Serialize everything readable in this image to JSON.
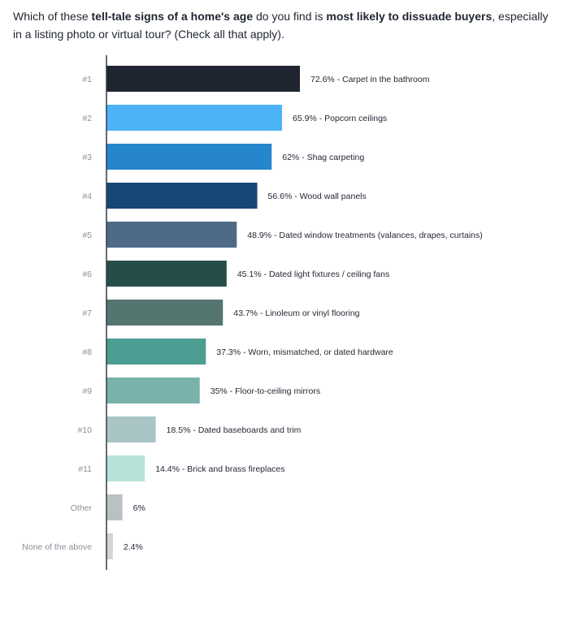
{
  "question": {
    "p1": "Which of these ",
    "b1": "tell-tale signs of a home's age",
    "p2": " do you find is ",
    "b2": "most likely to dissuade buyers",
    "p3": ", especially in a listing photo or virtual tour? (Check all that apply)."
  },
  "chart_data": {
    "type": "bar",
    "orientation": "horizontal",
    "categories": [
      "#1",
      "#2",
      "#3",
      "#4",
      "#5",
      "#6",
      "#7",
      "#8",
      "#9",
      "#10",
      "#11",
      "Other",
      "None of the above"
    ],
    "values": [
      72.6,
      65.9,
      62,
      56.6,
      48.9,
      45.1,
      43.7,
      37.3,
      35,
      18.5,
      14.4,
      6,
      2.4
    ],
    "data_labels": [
      "72.6%  - Carpet in the bathroom",
      "65.9% - Popcorn ceilings",
      "62% -  Shag carpeting",
      "56.6% - Wood wall panels",
      "48.9% - Dated window treatments (valances, drapes, curtains)",
      "45.1% - Dated light fixtures / ceiling fans",
      "43.7% - Linoleum or vinyl flooring",
      "37.3% - Worn, mismatched, or dated hardware",
      "35% - Floor-to-ceiling mirrors",
      "18.5% - Dated baseboards and trim",
      "14.4% - Brick and brass fireplaces",
      "6%",
      "2.4%"
    ],
    "colors": [
      "#1f2530",
      "#4db3f7",
      "#2586cc",
      "#174777",
      "#4e6a87",
      "#264e48",
      "#557571",
      "#4d9e92",
      "#79b2aa",
      "#a9c4c4",
      "#b5e3d9",
      "#bbc0c3",
      "#d2d4d6"
    ],
    "xlim": [
      0,
      100
    ],
    "grid": false,
    "legend": "none"
  }
}
